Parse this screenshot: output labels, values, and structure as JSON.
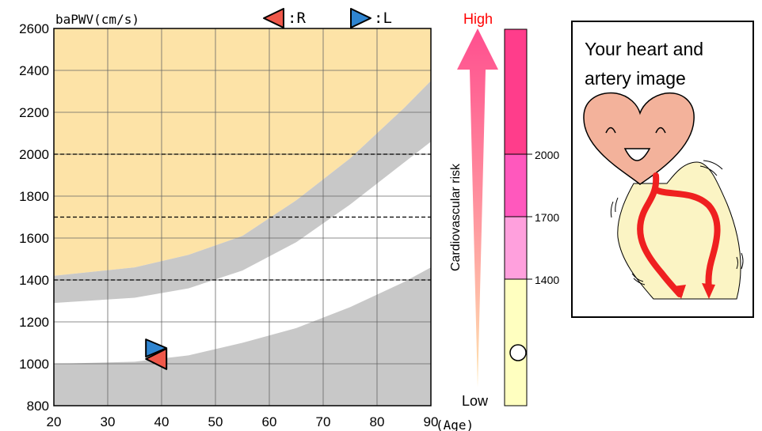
{
  "chart_data": {
    "type": "scatter",
    "title": "",
    "ylabel": "baPWV(cm/s)",
    "xlabel": "(Age)",
    "xlim": [
      20,
      90
    ],
    "ylim": [
      800,
      2600
    ],
    "x_ticks": [
      20,
      30,
      40,
      50,
      60,
      70,
      80,
      90
    ],
    "y_ticks": [
      800,
      1000,
      1200,
      1400,
      1600,
      1800,
      2000,
      2200,
      2400,
      2600
    ],
    "grid": true,
    "reference_lines": [
      1400,
      1700,
      2000
    ],
    "bands": {
      "upper_gray_lower": [
        [
          20,
          1290
        ],
        [
          35,
          1315
        ],
        [
          45,
          1360
        ],
        [
          55,
          1445
        ],
        [
          65,
          1580
        ],
        [
          75,
          1760
        ],
        [
          85,
          1960
        ],
        [
          90,
          2060
        ]
      ],
      "upper_gray_upper": [
        [
          20,
          1420
        ],
        [
          35,
          1460
        ],
        [
          45,
          1520
        ],
        [
          55,
          1610
        ],
        [
          65,
          1780
        ],
        [
          75,
          1980
        ],
        [
          85,
          2220
        ],
        [
          90,
          2350
        ]
      ],
      "lower_gray_upper": [
        [
          20,
          1000
        ],
        [
          35,
          1010
        ],
        [
          45,
          1040
        ],
        [
          55,
          1100
        ],
        [
          65,
          1170
        ],
        [
          75,
          1270
        ],
        [
          85,
          1390
        ],
        [
          90,
          1460
        ]
      ]
    },
    "colors": {
      "risk_zone": "#fde3a7",
      "normal_band": "#c8c8c8",
      "right_marker": "#f0584a",
      "left_marker": "#2f85d1"
    },
    "series": [
      {
        "name": ":R",
        "x": [
          39
        ],
        "y": [
          1023
        ]
      },
      {
        "name": ":L",
        "x": [
          39
        ],
        "y": [
          1075
        ]
      }
    ]
  },
  "legend": {
    "right_label": ":R",
    "left_label": ":L"
  },
  "risk_scale": {
    "axis_label": "Cardiovascular risk",
    "high_label": "High",
    "low_label": "Low",
    "levels": [
      "2000",
      "1700",
      "1400"
    ],
    "colors": {
      "top": "#ff3d8b",
      "mid": "#ff58bd",
      "lower": "#ffa0dd",
      "base": "#ffffc0",
      "high_text": "#ff0000"
    },
    "marker_value": 1040
  },
  "heart_panel": {
    "line1": "Your heart and",
    "line2": "artery image"
  }
}
